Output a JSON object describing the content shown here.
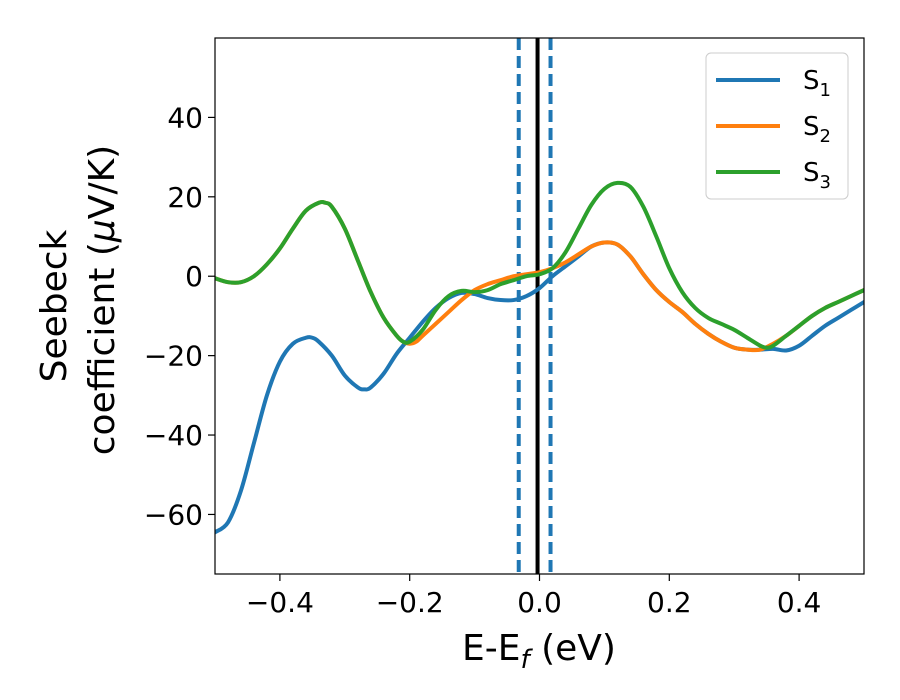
{
  "chart_data": {
    "type": "line",
    "xlabel_main": "E-E",
    "xlabel_sub": "f",
    "xlabel_unit": " (eV)",
    "ylabel_line1": "Seebeck",
    "ylabel_line2_text": "coefficient  (",
    "ylabel_line2_mu": "μ",
    "ylabel_line2_unit": "V/K)",
    "xlim": [
      -0.5,
      0.5
    ],
    "ylim": [
      -75,
      60
    ],
    "xticks": [
      -0.4,
      -0.2,
      0.0,
      0.2,
      0.4
    ],
    "xtick_labels": [
      "−0.4",
      "−0.2",
      "0.0",
      "0.2",
      "0.4"
    ],
    "yticks": [
      -60,
      -40,
      -20,
      0,
      20,
      40
    ],
    "ytick_labels": [
      "−60",
      "−40",
      "−20",
      "0",
      "20",
      "40"
    ],
    "grid": false,
    "legend_position": "top-right",
    "vlines": [
      {
        "x": -0.032,
        "style": "dashed",
        "color": "#1f77b4"
      },
      {
        "x": -0.003,
        "style": "solid",
        "color": "#000000"
      },
      {
        "x": 0.017,
        "style": "dashed",
        "color": "#1f77b4"
      }
    ],
    "series": [
      {
        "name": "S",
        "sub": "1",
        "color": "#1f77b4",
        "points": [
          [
            -0.5,
            -64.5
          ],
          [
            -0.48,
            -62
          ],
          [
            -0.46,
            -54
          ],
          [
            -0.44,
            -42
          ],
          [
            -0.42,
            -30
          ],
          [
            -0.4,
            -21.5
          ],
          [
            -0.38,
            -17
          ],
          [
            -0.36,
            -15.5
          ],
          [
            -0.35,
            -15.5
          ],
          [
            -0.34,
            -16.5
          ],
          [
            -0.32,
            -20
          ],
          [
            -0.3,
            -25
          ],
          [
            -0.28,
            -28
          ],
          [
            -0.27,
            -28.5
          ],
          [
            -0.26,
            -28
          ],
          [
            -0.24,
            -24.5
          ],
          [
            -0.22,
            -19.5
          ],
          [
            -0.2,
            -15.5
          ],
          [
            -0.18,
            -11.5
          ],
          [
            -0.16,
            -8
          ],
          [
            -0.14,
            -5.5
          ],
          [
            -0.12,
            -4.2
          ],
          [
            -0.1,
            -4.5
          ],
          [
            -0.08,
            -5.5
          ],
          [
            -0.06,
            -6
          ],
          [
            -0.04,
            -6
          ],
          [
            -0.02,
            -5
          ],
          [
            0.0,
            -3
          ],
          [
            0.02,
            0
          ],
          [
            0.04,
            2.5
          ],
          [
            0.06,
            5
          ],
          [
            0.08,
            7.5
          ],
          [
            0.1,
            8.5
          ],
          [
            0.12,
            8
          ],
          [
            0.14,
            5
          ],
          [
            0.16,
            0.5
          ],
          [
            0.18,
            -3.5
          ],
          [
            0.2,
            -6.5
          ],
          [
            0.22,
            -9
          ],
          [
            0.24,
            -12
          ],
          [
            0.26,
            -14.5
          ],
          [
            0.28,
            -16.5
          ],
          [
            0.3,
            -18
          ],
          [
            0.32,
            -18.5
          ],
          [
            0.34,
            -18.5
          ],
          [
            0.36,
            -18.3
          ],
          [
            0.38,
            -18.7
          ],
          [
            0.4,
            -17.5
          ],
          [
            0.42,
            -15
          ],
          [
            0.44,
            -12.5
          ],
          [
            0.46,
            -10.5
          ],
          [
            0.48,
            -8.5
          ],
          [
            0.5,
            -6.5
          ]
        ]
      },
      {
        "name": "S",
        "sub": "2",
        "color": "#ff7f0e",
        "points": [
          [
            -0.5,
            -0.5
          ],
          [
            -0.48,
            -1.5
          ],
          [
            -0.46,
            -1.5
          ],
          [
            -0.44,
            0
          ],
          [
            -0.42,
            3
          ],
          [
            -0.4,
            7
          ],
          [
            -0.38,
            12
          ],
          [
            -0.36,
            16.5
          ],
          [
            -0.34,
            18.5
          ],
          [
            -0.33,
            18.5
          ],
          [
            -0.32,
            17.5
          ],
          [
            -0.3,
            12
          ],
          [
            -0.28,
            4
          ],
          [
            -0.26,
            -4
          ],
          [
            -0.24,
            -10.5
          ],
          [
            -0.22,
            -15
          ],
          [
            -0.21,
            -16.5
          ],
          [
            -0.2,
            -17
          ],
          [
            -0.19,
            -16.5
          ],
          [
            -0.18,
            -15
          ],
          [
            -0.16,
            -12
          ],
          [
            -0.14,
            -9
          ],
          [
            -0.12,
            -6
          ],
          [
            -0.1,
            -3.5
          ],
          [
            -0.08,
            -2
          ],
          [
            -0.06,
            -1
          ],
          [
            -0.04,
            0
          ],
          [
            -0.02,
            0.5
          ],
          [
            0.0,
            1
          ],
          [
            0.02,
            2
          ],
          [
            0.04,
            3.5
          ],
          [
            0.06,
            5.5
          ],
          [
            0.08,
            7.5
          ],
          [
            0.1,
            8.5
          ],
          [
            0.12,
            8
          ],
          [
            0.14,
            5
          ],
          [
            0.16,
            0.5
          ],
          [
            0.18,
            -3.5
          ],
          [
            0.2,
            -6.5
          ],
          [
            0.22,
            -9
          ],
          [
            0.24,
            -12
          ],
          [
            0.26,
            -14.5
          ],
          [
            0.28,
            -16.5
          ],
          [
            0.3,
            -18
          ],
          [
            0.32,
            -18.5
          ],
          [
            0.34,
            -18.5
          ],
          [
            0.36,
            -17
          ],
          [
            0.38,
            -15
          ],
          [
            0.4,
            -12.5
          ],
          [
            0.42,
            -10
          ],
          [
            0.44,
            -8
          ],
          [
            0.46,
            -6.5
          ],
          [
            0.48,
            -5
          ],
          [
            0.5,
            -3.5
          ]
        ]
      },
      {
        "name": "S",
        "sub": "3",
        "color": "#2ca02c",
        "points": [
          [
            -0.5,
            -0.5
          ],
          [
            -0.48,
            -1.5
          ],
          [
            -0.46,
            -1.5
          ],
          [
            -0.44,
            0
          ],
          [
            -0.42,
            3
          ],
          [
            -0.4,
            7
          ],
          [
            -0.38,
            12
          ],
          [
            -0.36,
            16.5
          ],
          [
            -0.34,
            18.5
          ],
          [
            -0.33,
            18.5
          ],
          [
            -0.32,
            17.5
          ],
          [
            -0.3,
            12
          ],
          [
            -0.28,
            4
          ],
          [
            -0.26,
            -4
          ],
          [
            -0.24,
            -10.5
          ],
          [
            -0.22,
            -15
          ],
          [
            -0.21,
            -16.5
          ],
          [
            -0.2,
            -16.5
          ],
          [
            -0.18,
            -13.5
          ],
          [
            -0.16,
            -8.5
          ],
          [
            -0.14,
            -5
          ],
          [
            -0.12,
            -3.7
          ],
          [
            -0.1,
            -4
          ],
          [
            -0.08,
            -3.5
          ],
          [
            -0.06,
            -2
          ],
          [
            -0.04,
            -1
          ],
          [
            -0.02,
            0
          ],
          [
            0.0,
            0.5
          ],
          [
            0.02,
            2
          ],
          [
            0.04,
            6
          ],
          [
            0.06,
            12
          ],
          [
            0.08,
            18
          ],
          [
            0.1,
            22
          ],
          [
            0.12,
            23.5
          ],
          [
            0.14,
            22.5
          ],
          [
            0.16,
            17.5
          ],
          [
            0.18,
            10
          ],
          [
            0.2,
            2
          ],
          [
            0.22,
            -4
          ],
          [
            0.24,
            -8
          ],
          [
            0.26,
            -10.5
          ],
          [
            0.28,
            -12
          ],
          [
            0.3,
            -13.5
          ],
          [
            0.32,
            -15.5
          ],
          [
            0.34,
            -17.5
          ],
          [
            0.35,
            -18
          ],
          [
            0.36,
            -17.5
          ],
          [
            0.38,
            -15
          ],
          [
            0.4,
            -12.5
          ],
          [
            0.42,
            -10
          ],
          [
            0.44,
            -8
          ],
          [
            0.46,
            -6.5
          ],
          [
            0.48,
            -5
          ],
          [
            0.5,
            -3.5
          ]
        ]
      }
    ]
  }
}
